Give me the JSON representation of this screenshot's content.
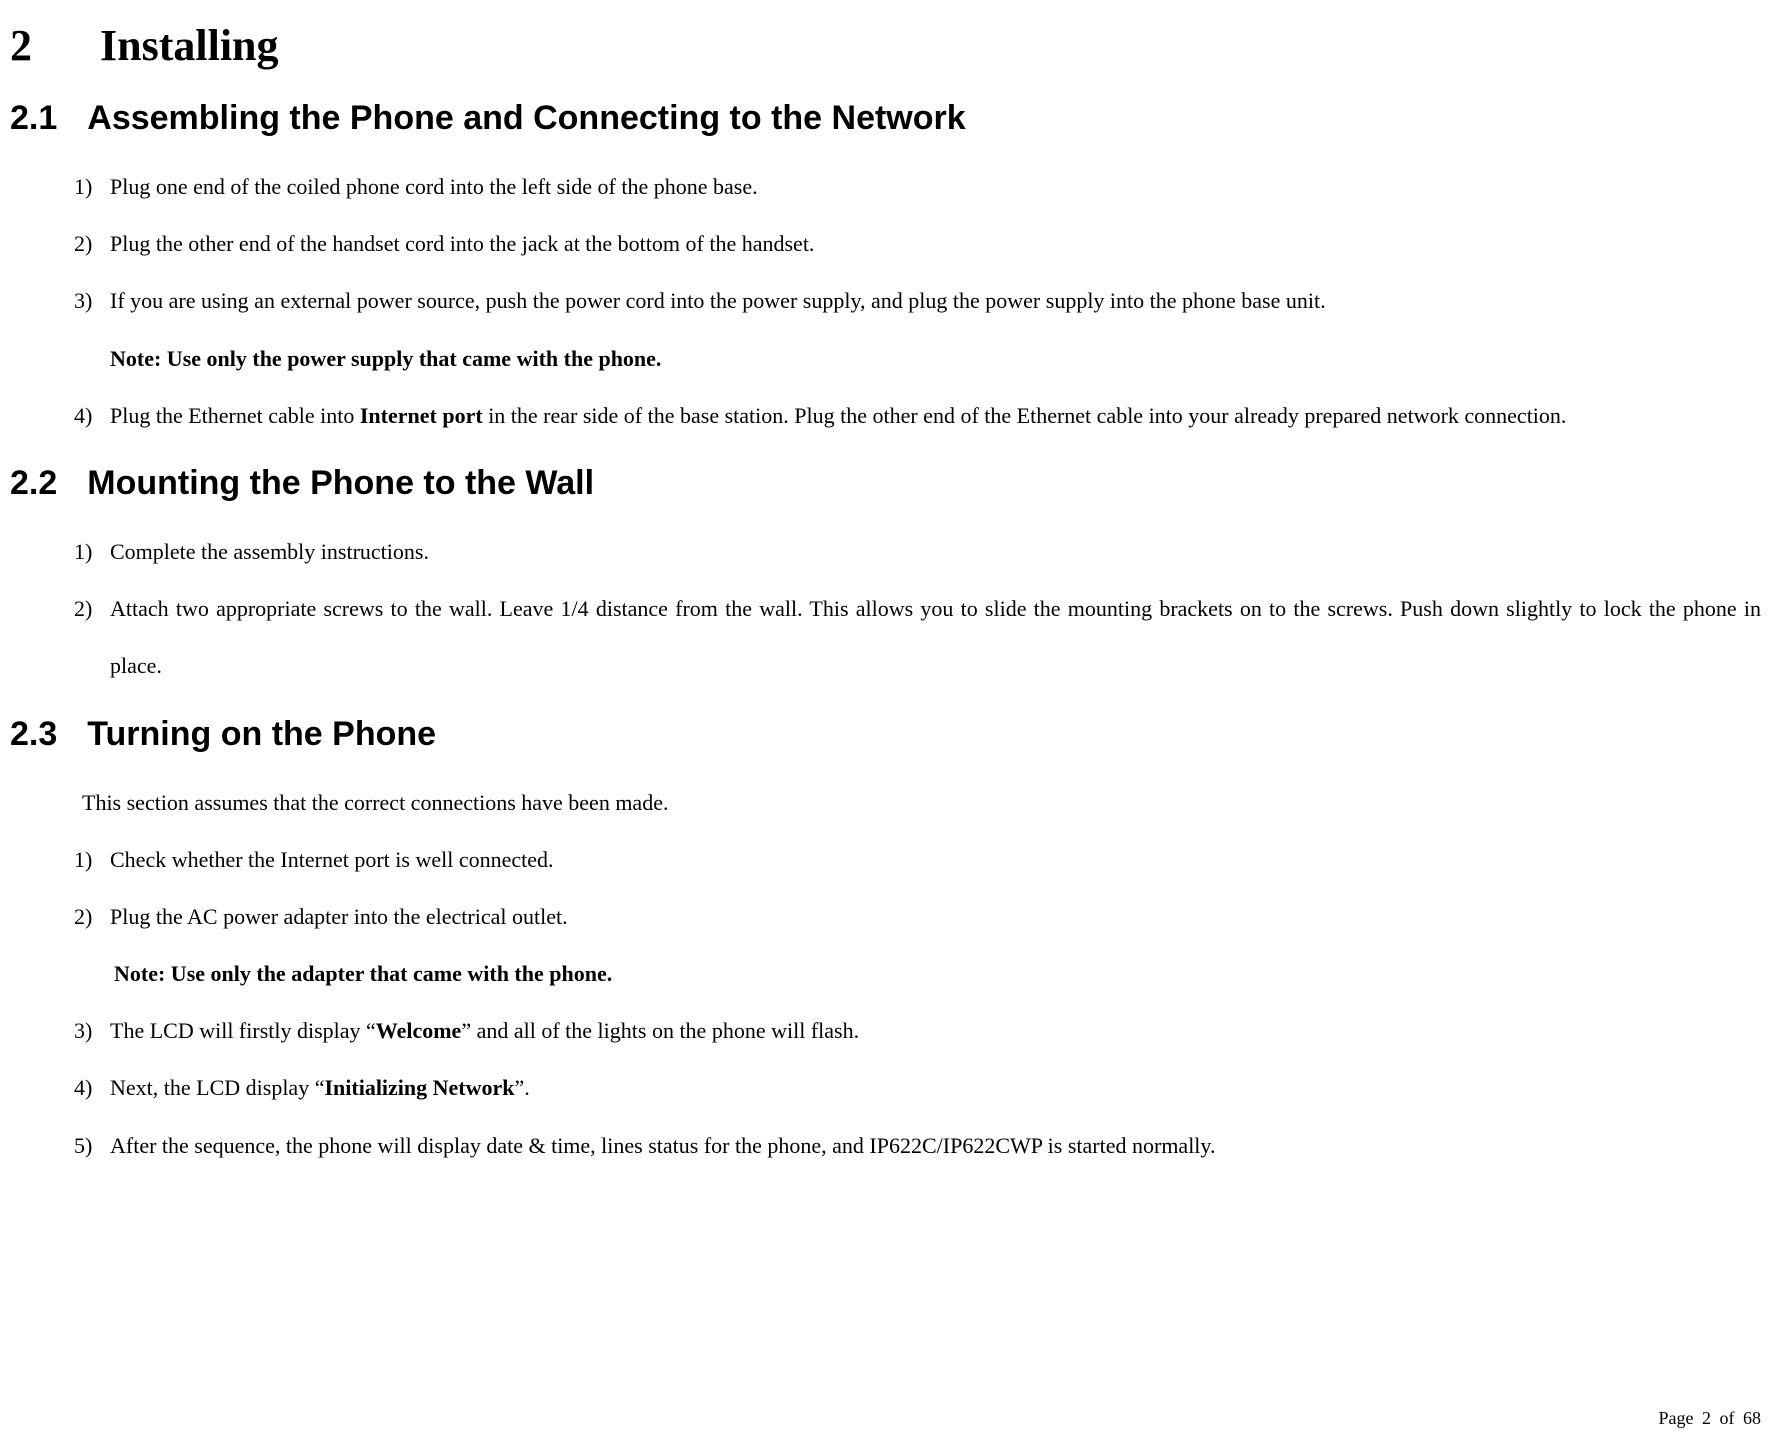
{
  "chapter": {
    "number": "2",
    "title": "Installing"
  },
  "sections": {
    "s21": {
      "number": "2.1",
      "title": "Assembling the Phone and Connecting to the Network",
      "items": {
        "i1_num": "1)",
        "i1_text": "Plug one end of the coiled phone cord into the left side of the phone base.",
        "i2_num": "2)",
        "i2_text": "Plug the other end of the handset cord into the jack at the bottom of the handset.",
        "i3_num": "3)",
        "i3_text": "If you are using an external power source, push the power cord into the power supply, and plug the power supply into the phone base unit.",
        "i3_note": "Note: Use only the power supply that came with the phone.",
        "i4_num": "4)",
        "i4_text_a": "Plug the Ethernet cable into ",
        "i4_bold": "Internet port",
        "i4_text_b": " in the rear side of the base station. Plug the other end of the Ethernet cable into your already prepared network connection."
      }
    },
    "s22": {
      "number": "2.2",
      "title": "Mounting the Phone to the Wall",
      "items": {
        "i1_num": "1)",
        "i1_text": "Complete the assembly instructions.",
        "i2_num": "2)",
        "i2_text": "Attach two appropriate screws to the wall. Leave 1/4 distance from the wall. This allows you to slide the mounting brackets on to the screws. Push down slightly to lock the phone in place."
      }
    },
    "s23": {
      "number": "2.3",
      "title": "Turning on the Phone",
      "intro": "This section assumes that the correct connections have been made.",
      "items": {
        "i1_num": "1)",
        "i1_text": "Check whether the Internet port is well connected.",
        "i2_num": "2)",
        "i2_text": "Plug the AC power adapter into the electrical outlet.",
        "i2_note": "Note: Use only the adapter that came with the phone.",
        "i3_num": "3)",
        "i3_text_a": "The LCD will firstly display “",
        "i3_bold": "Welcome",
        "i3_text_b": "” and all of the lights on the phone will flash.",
        "i4_num": "4)",
        "i4_text_a": "Next, the LCD display “",
        "i4_bold": "Initializing Network",
        "i4_text_b": "”.",
        "i5_num": "5)",
        "i5_text": "After the sequence, the phone will display date & time, lines status for the phone, and IP622C/IP622CWP is started normally."
      }
    }
  },
  "footer": "Page 2 of 68"
}
